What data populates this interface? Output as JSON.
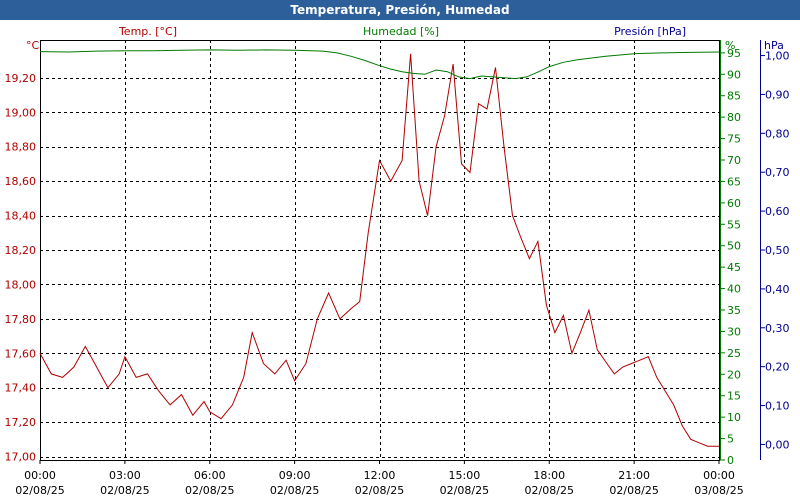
{
  "header": {
    "title": "Temperatura, Presión, Humedad"
  },
  "colors": {
    "titlebar": "#2d5f9a",
    "temp": "#b00000",
    "humidity": "#007a00",
    "pressure": "#000090",
    "grid": "#000000"
  },
  "chart_data": {
    "type": "line",
    "grid": true,
    "legend": "top",
    "x": {
      "range": [
        "2025-08-02 00:00",
        "2025-08-03 00:00"
      ],
      "ticks": [
        {
          "time": "00:00",
          "date": "02/08/25"
        },
        {
          "time": "03:00",
          "date": "02/08/25"
        },
        {
          "time": "06:00",
          "date": "02/08/25"
        },
        {
          "time": "09:00",
          "date": "02/08/25"
        },
        {
          "time": "12:00",
          "date": "02/08/25"
        },
        {
          "time": "15:00",
          "date": "02/08/25"
        },
        {
          "time": "18:00",
          "date": "02/08/25"
        },
        {
          "time": "21:00",
          "date": "02/08/25"
        },
        {
          "time": "00:00",
          "date": "03/08/25"
        }
      ]
    },
    "axes": {
      "temp": {
        "unit": "°C",
        "range": [
          16.98,
          19.42
        ],
        "ticks": [
          "17,00",
          "17,20",
          "17,40",
          "17,60",
          "17,80",
          "18,00",
          "18,20",
          "18,40",
          "18,60",
          "18,80",
          "19,00",
          "19,20"
        ]
      },
      "humidity": {
        "unit": "%",
        "range": [
          0,
          98
        ],
        "ticks": [
          "0",
          "5",
          "10",
          "15",
          "20",
          "25",
          "30",
          "35",
          "40",
          "45",
          "50",
          "55",
          "60",
          "65",
          "70",
          "75",
          "80",
          "85",
          "90",
          "95"
        ]
      },
      "pressure": {
        "unit": "hPa",
        "range": [
          -0.04,
          1.04
        ],
        "ticks": [
          "0,00",
          "0,10",
          "0,20",
          "0,30",
          "0,40",
          "0,50",
          "0,60",
          "0,70",
          "0,80",
          "0,90",
          "1,00"
        ]
      }
    },
    "series": [
      {
        "name": "Temp. [°C]",
        "axis": "temp",
        "hours": [
          0,
          0.4,
          0.8,
          1.2,
          1.6,
          2,
          2.4,
          2.8,
          3,
          3.4,
          3.8,
          4.2,
          4.6,
          5,
          5.4,
          5.8,
          6,
          6.4,
          6.8,
          7.2,
          7.5,
          7.9,
          8.3,
          8.7,
          9,
          9.4,
          9.8,
          10.2,
          10.6,
          11,
          11.3,
          11.6,
          12,
          12.4,
          12.8,
          13.1,
          13.4,
          13.7,
          14,
          14.3,
          14.6,
          14.9,
          15.2,
          15.5,
          15.8,
          16.1,
          16.4,
          16.7,
          17,
          17.3,
          17.6,
          17.9,
          18.2,
          18.5,
          18.8,
          19.1,
          19.4,
          19.7,
          20,
          20.3,
          20.6,
          20.9,
          21.2,
          21.5,
          21.8,
          22.1,
          22.4,
          22.7,
          23,
          23.3,
          23.6,
          24
        ],
        "values": [
          17.6,
          17.48,
          17.46,
          17.52,
          17.64,
          17.52,
          17.4,
          17.48,
          17.58,
          17.46,
          17.48,
          17.38,
          17.3,
          17.36,
          17.24,
          17.32,
          17.26,
          17.22,
          17.3,
          17.46,
          17.72,
          17.54,
          17.48,
          17.56,
          17.44,
          17.54,
          17.8,
          17.95,
          17.8,
          17.86,
          17.9,
          18.3,
          18.72,
          18.6,
          18.72,
          19.34,
          18.6,
          18.4,
          18.8,
          18.98,
          19.28,
          18.7,
          18.65,
          19.05,
          19.02,
          19.26,
          18.8,
          18.4,
          18.27,
          18.15,
          18.25,
          17.88,
          17.72,
          17.82,
          17.6,
          17.72,
          17.85,
          17.62,
          17.55,
          17.48,
          17.52,
          17.54,
          17.56,
          17.58,
          17.46,
          17.38,
          17.3,
          17.18,
          17.1,
          17.08,
          17.06,
          17.06
        ]
      },
      {
        "name": "Humedad [%]",
        "axis": "humidity",
        "hours": [
          0,
          1,
          2,
          3,
          4,
          5,
          6,
          7,
          8,
          9,
          10,
          10.5,
          11,
          11.5,
          12,
          12.4,
          12.8,
          13.2,
          13.6,
          14,
          14.4,
          14.8,
          15.2,
          15.6,
          16,
          16.4,
          16.8,
          17.2,
          17.6,
          18,
          18.5,
          19,
          20,
          21,
          22,
          23,
          24
        ],
        "values": [
          95.3,
          95.2,
          95.4,
          95.5,
          95.5,
          95.6,
          95.7,
          95.6,
          95.7,
          95.6,
          95.4,
          95.0,
          94.2,
          93.2,
          92.0,
          91.2,
          90.6,
          90.2,
          90.0,
          91.0,
          90.6,
          89.4,
          89.0,
          89.6,
          89.4,
          89.2,
          89.0,
          89.4,
          90.5,
          91.8,
          92.8,
          93.4,
          94.2,
          94.8,
          95.0,
          95.1,
          95.2
        ]
      }
    ],
    "legend_entries": [
      {
        "name": "Temp. [°C]",
        "axis": "temp"
      },
      {
        "name": "Humedad [%]",
        "axis": "humidity"
      },
      {
        "name": "Presión [hPa]",
        "axis": "pressure"
      }
    ]
  }
}
